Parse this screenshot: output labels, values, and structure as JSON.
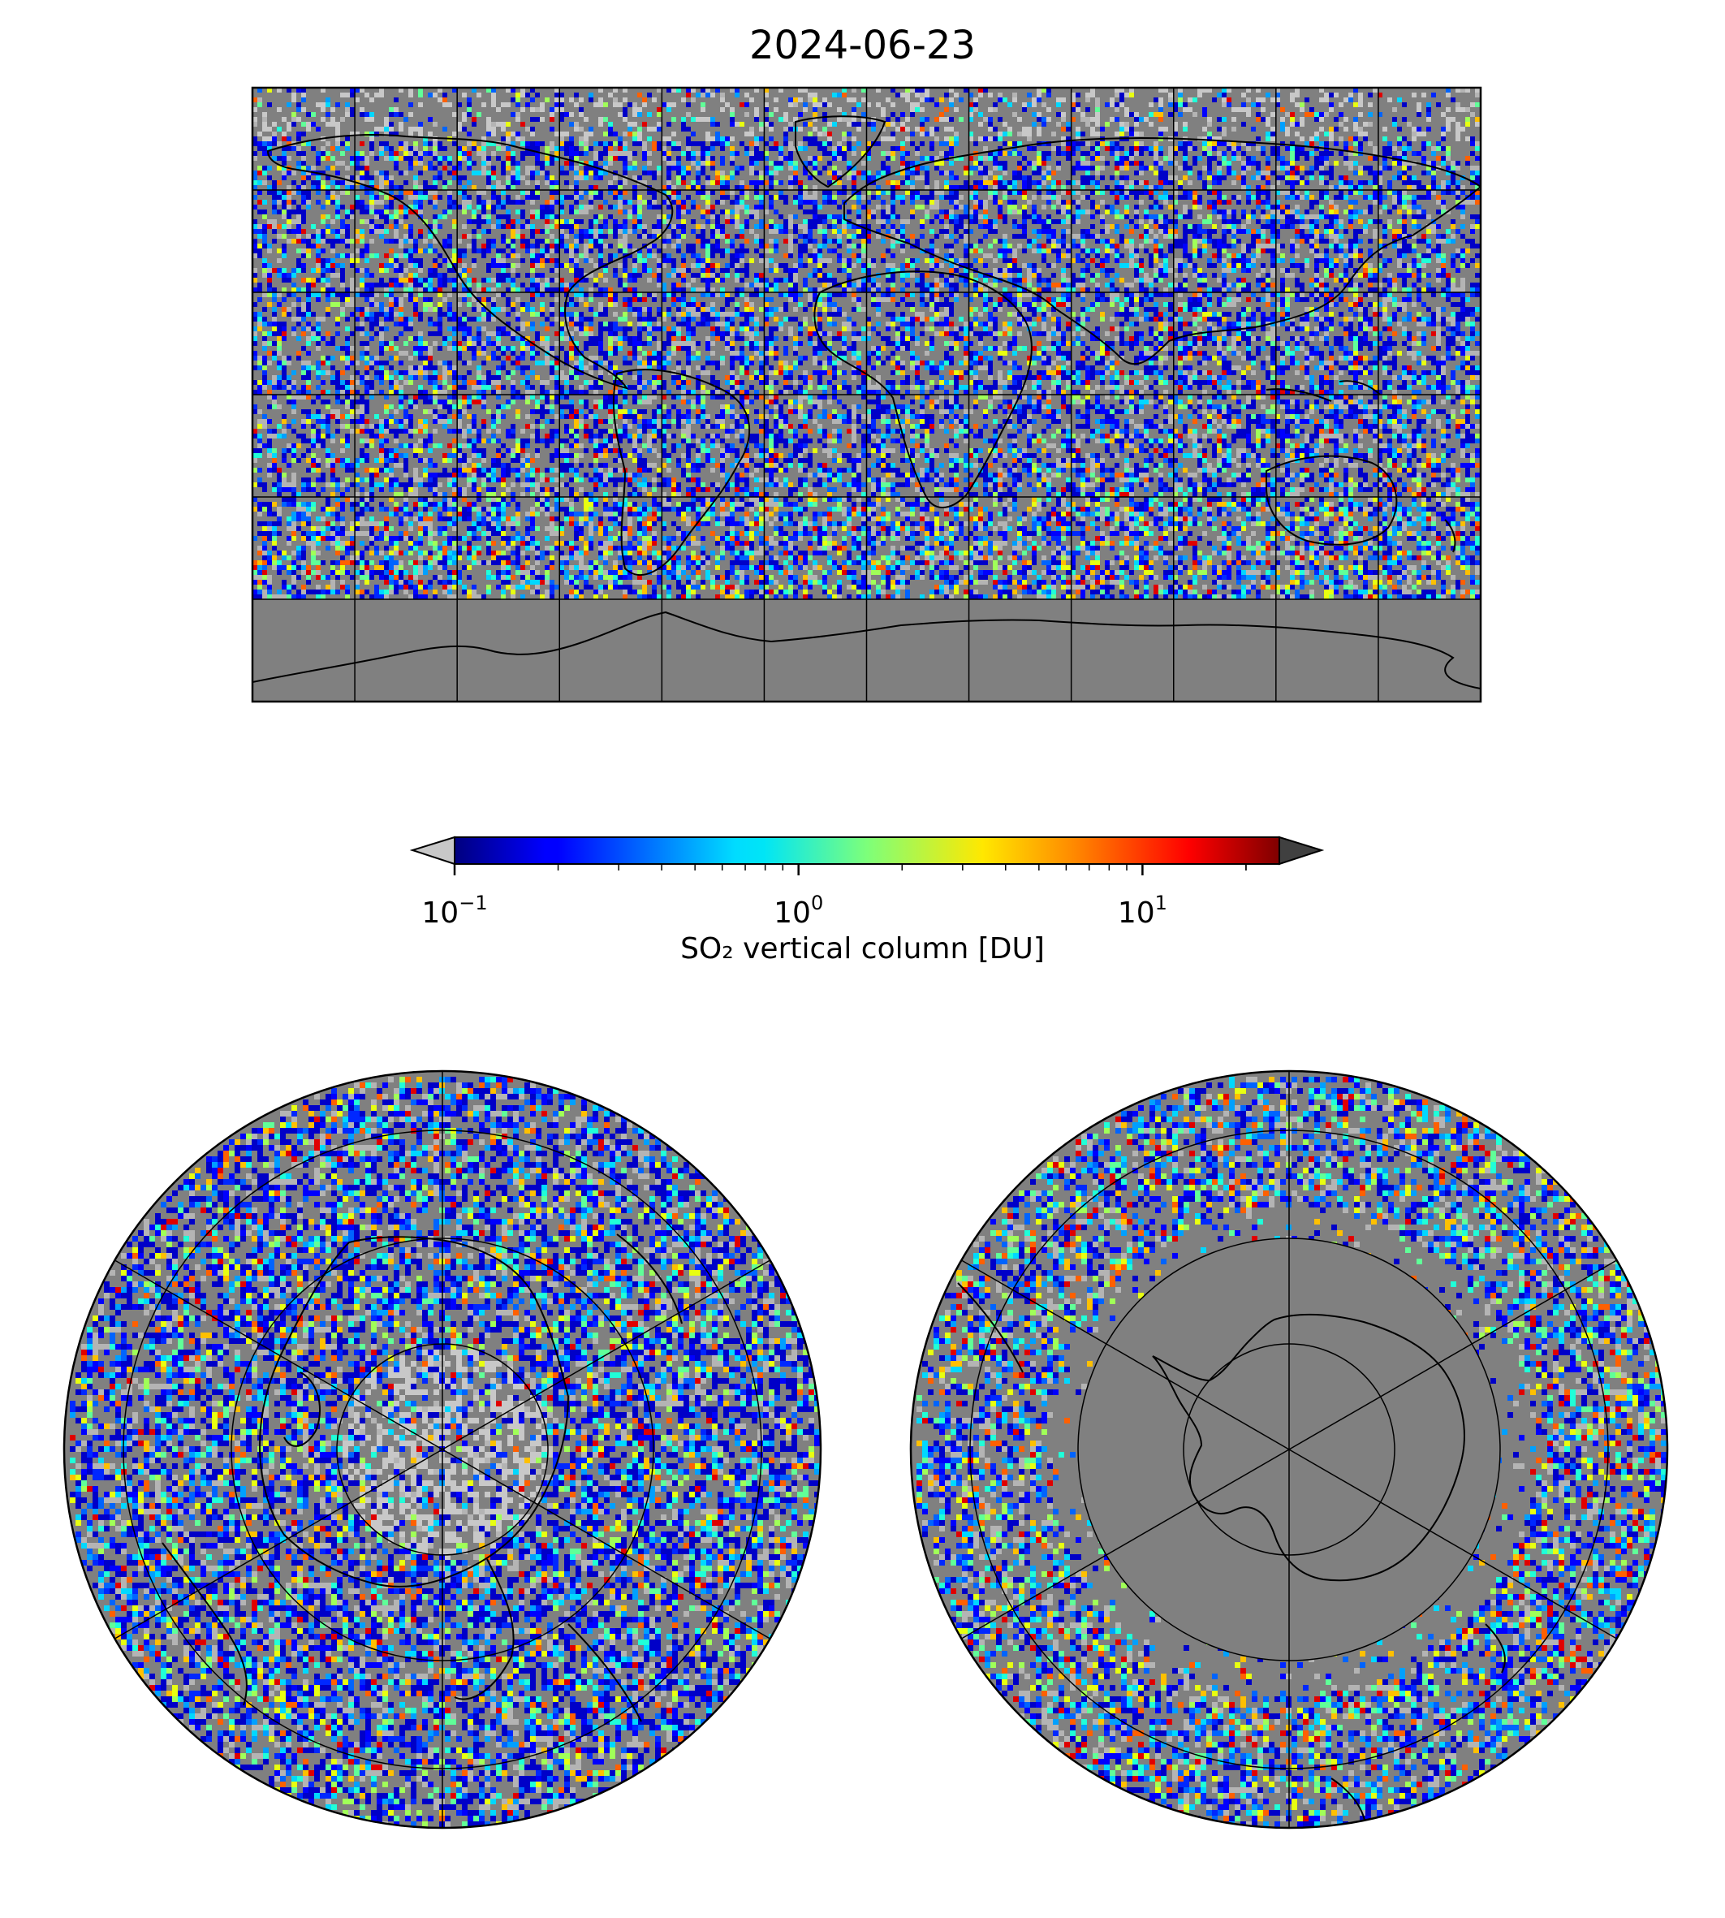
{
  "title": "2024-06-23",
  "colorbar": {
    "label": "SO₂ vertical column [DU]",
    "scale": "log",
    "range": [
      0.1,
      25
    ],
    "ticks": [
      {
        "base": "10",
        "exp": "−1",
        "value": 0.1
      },
      {
        "base": "10",
        "exp": "0",
        "value": 1
      },
      {
        "base": "10",
        "exp": "1",
        "value": 10
      }
    ],
    "colormap": "jet",
    "under_color": "#c8c8c8",
    "over_color": "#404040"
  },
  "maps": {
    "global": {
      "projection": "plate-carree",
      "gridline_spacing_deg": 30,
      "nodata_color": "#808080"
    },
    "north_polar": {
      "projection": "north-polar-stereographic",
      "nodata_color": "#808080"
    },
    "south_polar": {
      "projection": "south-polar-stereographic",
      "nodata_color": "#808080"
    }
  }
}
